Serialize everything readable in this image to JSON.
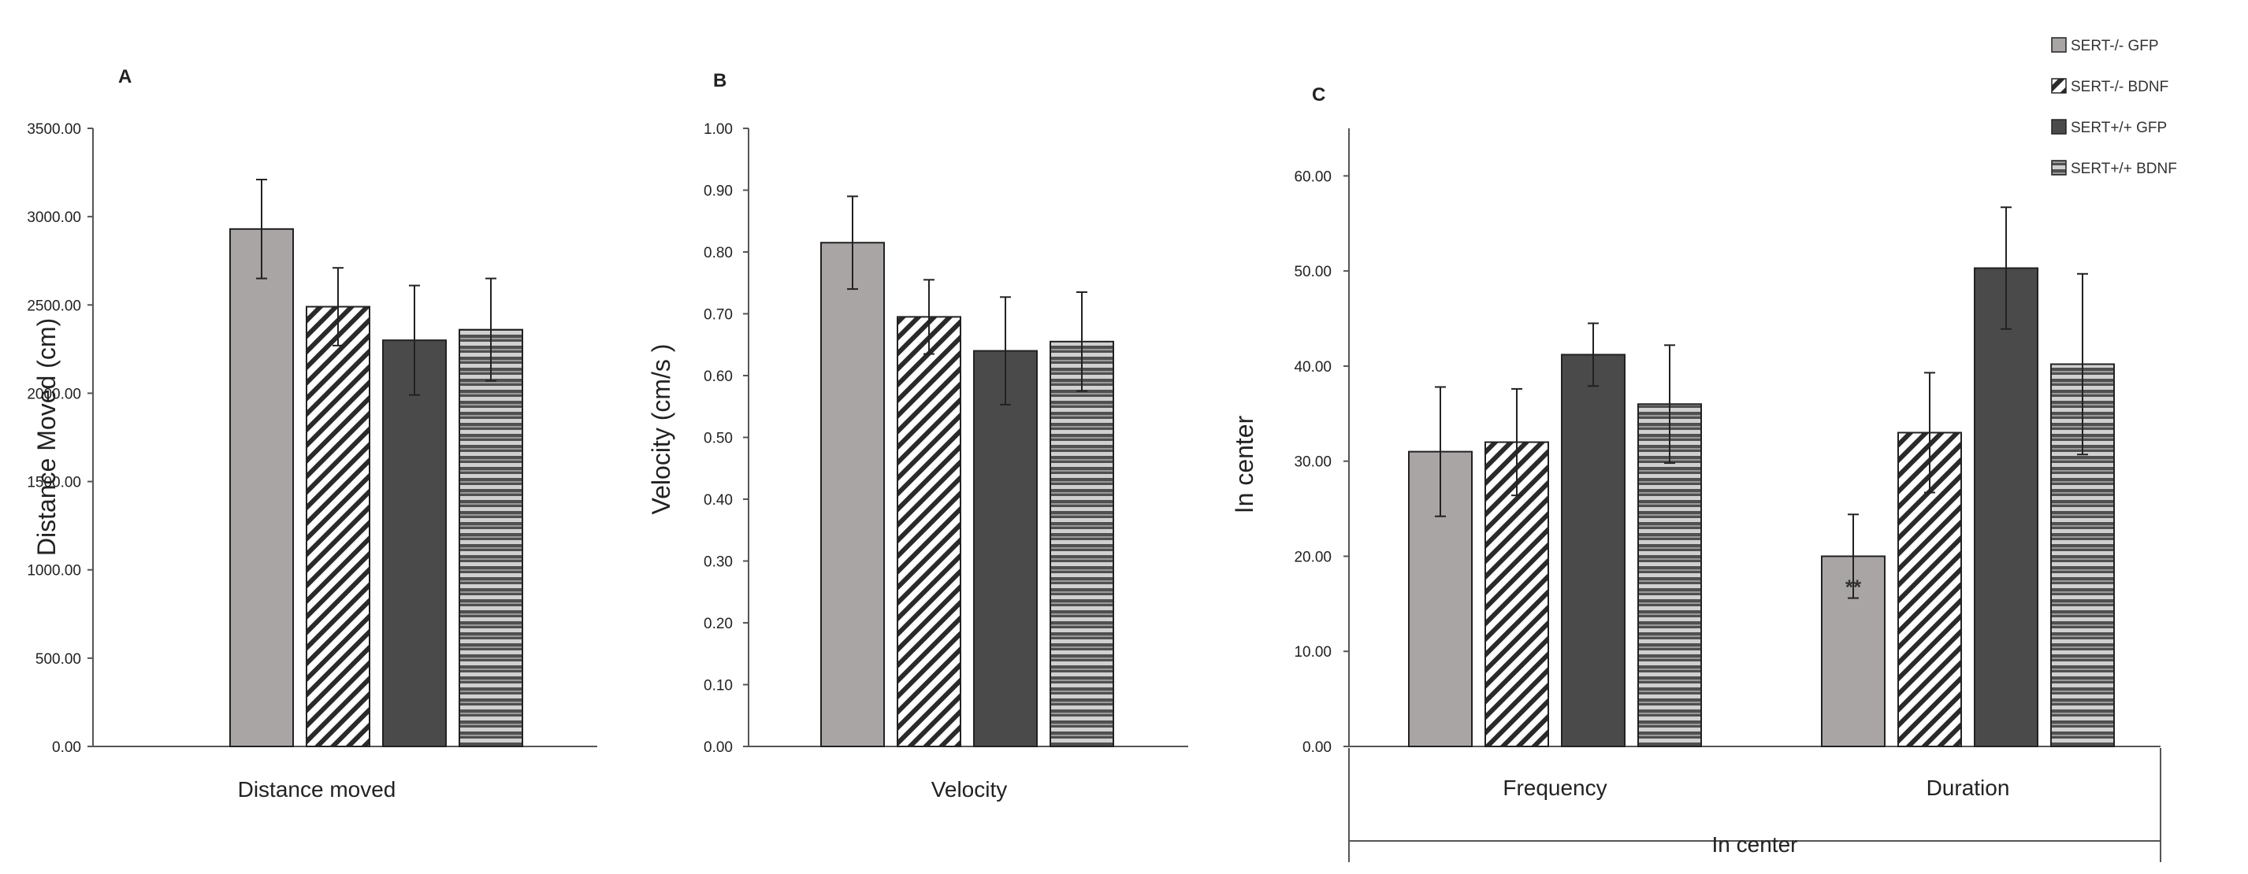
{
  "legend": {
    "entries": [
      {
        "label": "SERT-/- GFP",
        "pattern": "gfp_ko"
      },
      {
        "label": "SERT-/- BDNF",
        "pattern": "bdnf_ko"
      },
      {
        "label": "SERT+/+ GFP",
        "pattern": "gfp_wt"
      },
      {
        "label": "SERT+/+ BDNF",
        "pattern": "bdnf_wt"
      }
    ]
  },
  "colors": {
    "gfp_ko": "#a9a5a5",
    "wt": "#4a4a4a",
    "hatch": "#2a2a2a",
    "stripe_light": "#d0d0d0",
    "stripe_dark": "#505050",
    "axis": "#555555"
  },
  "chart_data": [
    {
      "type": "bar",
      "panel_label": "A",
      "title": "",
      "xlabel": "Distance moved",
      "ylabel": "Distance Moved (cm)",
      "ylim": [
        0,
        3500
      ],
      "yticks": [
        "0.00",
        "500.00",
        "1000.00",
        "1500.00",
        "2000.00",
        "2500.00",
        "3000.00",
        "3500.00"
      ],
      "categories": [
        "Distance moved"
      ],
      "series": [
        {
          "name": "SERT-/- GFP",
          "values": [
            2930
          ],
          "error": [
            280
          ]
        },
        {
          "name": "SERT-/- BDNF",
          "values": [
            2490
          ],
          "error": [
            220
          ]
        },
        {
          "name": "SERT+/+ GFP",
          "values": [
            2300
          ],
          "error": [
            310
          ]
        },
        {
          "name": "SERT+/+ BDNF",
          "values": [
            2360
          ],
          "error": [
            290
          ]
        }
      ]
    },
    {
      "type": "bar",
      "panel_label": "B",
      "title": "",
      "xlabel": "Velocity",
      "ylabel": "Velocity (cm/s )",
      "ylim": [
        0,
        1.0
      ],
      "yticks": [
        "0.00",
        "0.10",
        "0.20",
        "0.30",
        "0.40",
        "0.50",
        "0.60",
        "0.70",
        "0.80",
        "0.90",
        "1.00"
      ],
      "categories": [
        "Velocity"
      ],
      "series": [
        {
          "name": "SERT-/- GFP",
          "values": [
            0.815
          ],
          "error": [
            0.075
          ]
        },
        {
          "name": "SERT-/- BDNF",
          "values": [
            0.695
          ],
          "error": [
            0.06
          ]
        },
        {
          "name": "SERT+/+ GFP",
          "values": [
            0.64
          ],
          "error": [
            0.087
          ]
        },
        {
          "name": "SERT+/+ BDNF",
          "values": [
            0.655
          ],
          "error": [
            0.08
          ]
        }
      ]
    },
    {
      "type": "bar",
      "panel_label": "C",
      "title": "",
      "xlabel": "In center",
      "ylabel": "In center",
      "ylim": [
        0,
        65
      ],
      "yticks": [
        "0.00",
        "10.00",
        "20.00",
        "30.00",
        "40.00",
        "50.00",
        "60.00"
      ],
      "categories": [
        "Frequency",
        "Duration"
      ],
      "series": [
        {
          "name": "SERT-/- GFP",
          "values": [
            31,
            20
          ],
          "error": [
            6.8,
            4.4
          ]
        },
        {
          "name": "SERT-/- BDNF",
          "values": [
            32,
            33
          ],
          "error": [
            5.6,
            6.3
          ]
        },
        {
          "name": "SERT+/+ GFP",
          "values": [
            41.2,
            50.3
          ],
          "error": [
            3.3,
            6.4
          ]
        },
        {
          "name": "SERT+/+ BDNF",
          "values": [
            36,
            40.2
          ],
          "error": [
            6.2,
            9.5
          ]
        }
      ],
      "annotations": [
        {
          "text": "**",
          "category": "Duration",
          "series": "SERT-/- GFP"
        }
      ]
    }
  ]
}
